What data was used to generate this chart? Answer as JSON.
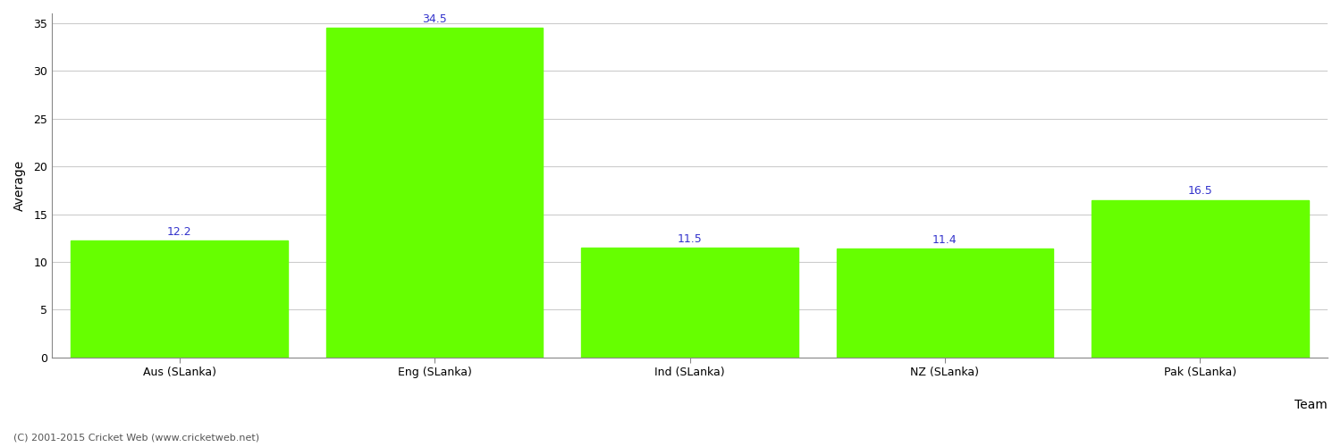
{
  "categories": [
    "Aus (SLanka)",
    "Eng (SLanka)",
    "Ind (SLanka)",
    "NZ (SLanka)",
    "Pak (SLanka)"
  ],
  "values": [
    12.2,
    34.5,
    11.5,
    11.4,
    16.5
  ],
  "bar_color": "#66ff00",
  "bar_edge_color": "#66ff00",
  "label_color": "#3333cc",
  "ylabel": "Average",
  "xlabel": "Team",
  "ylim": [
    0,
    36
  ],
  "yticks": [
    0,
    5,
    10,
    15,
    20,
    25,
    30,
    35
  ],
  "grid_color": "#cccccc",
  "background_color": "#ffffff",
  "label_fontsize": 9,
  "axis_label_fontsize": 10,
  "tick_fontsize": 9,
  "footer_text": "(C) 2001-2015 Cricket Web (www.cricketweb.net)",
  "footer_fontsize": 8,
  "footer_color": "#555555",
  "bar_width": 0.85
}
